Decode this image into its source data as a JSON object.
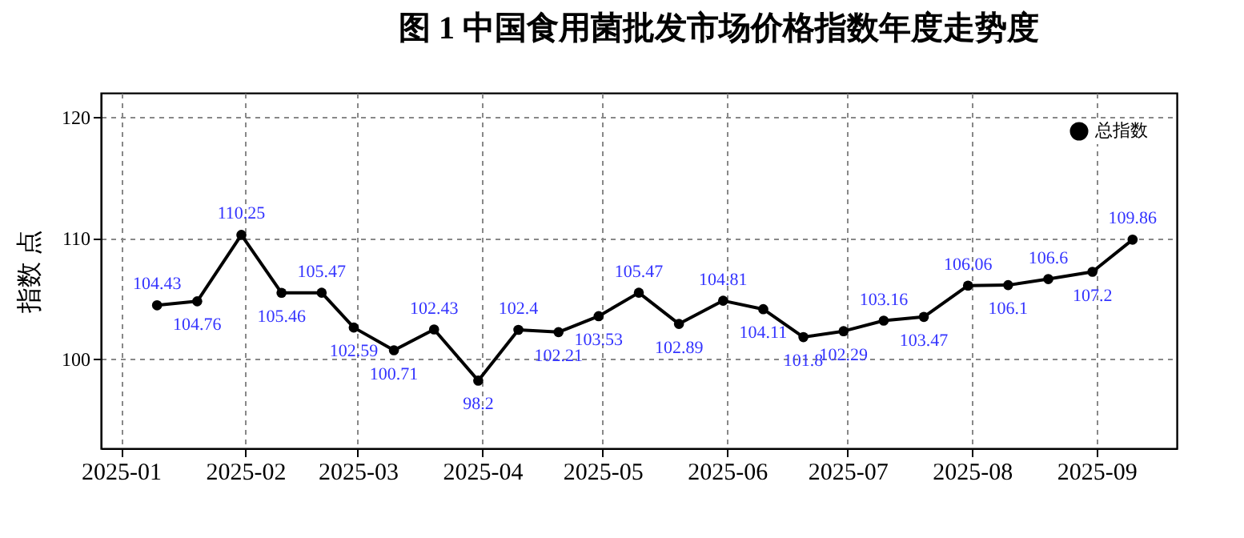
{
  "chart_data": {
    "type": "line",
    "title": "图 1  中国食用菌批发市场价格指数年度走势度",
    "ylabel": "指数 点",
    "x": [
      "2025-01-10",
      "2025-01-20",
      "2025-01-31",
      "2025-02-10",
      "2025-02-20",
      "2025-02-28",
      "2025-03-10",
      "2025-03-20",
      "2025-03-31",
      "2025-04-10",
      "2025-04-20",
      "2025-04-30",
      "2025-05-10",
      "2025-05-20",
      "2025-05-31",
      "2025-06-10",
      "2025-06-20",
      "2025-06-30",
      "2025-07-10",
      "2025-07-20",
      "2025-07-31",
      "2025-08-10",
      "2025-08-20",
      "2025-08-31",
      "2025-09-10"
    ],
    "series": [
      {
        "name": "总指数",
        "color": "#000000",
        "values": [
          104.43,
          104.76,
          110.25,
          105.46,
          105.47,
          102.59,
          100.71,
          102.43,
          98.2,
          102.4,
          102.21,
          103.53,
          105.47,
          102.89,
          104.81,
          104.11,
          101.8,
          102.29,
          103.16,
          103.47,
          106.06,
          106.1,
          106.6,
          107.2,
          109.86
        ]
      }
    ],
    "xlim": [
      "2024-12-27",
      "2025-09-21"
    ],
    "xticks": [
      "2025-01",
      "2025-02",
      "2025-03",
      "2025-04",
      "2025-05",
      "2025-06",
      "2025-07",
      "2025-08",
      "2025-09"
    ],
    "ylim": [
      92.6,
      122
    ],
    "yticks": [
      100,
      110,
      120
    ],
    "data_labels": true,
    "grid": true,
    "legend": "top right",
    "marker": "circle",
    "line_style": "solid"
  }
}
